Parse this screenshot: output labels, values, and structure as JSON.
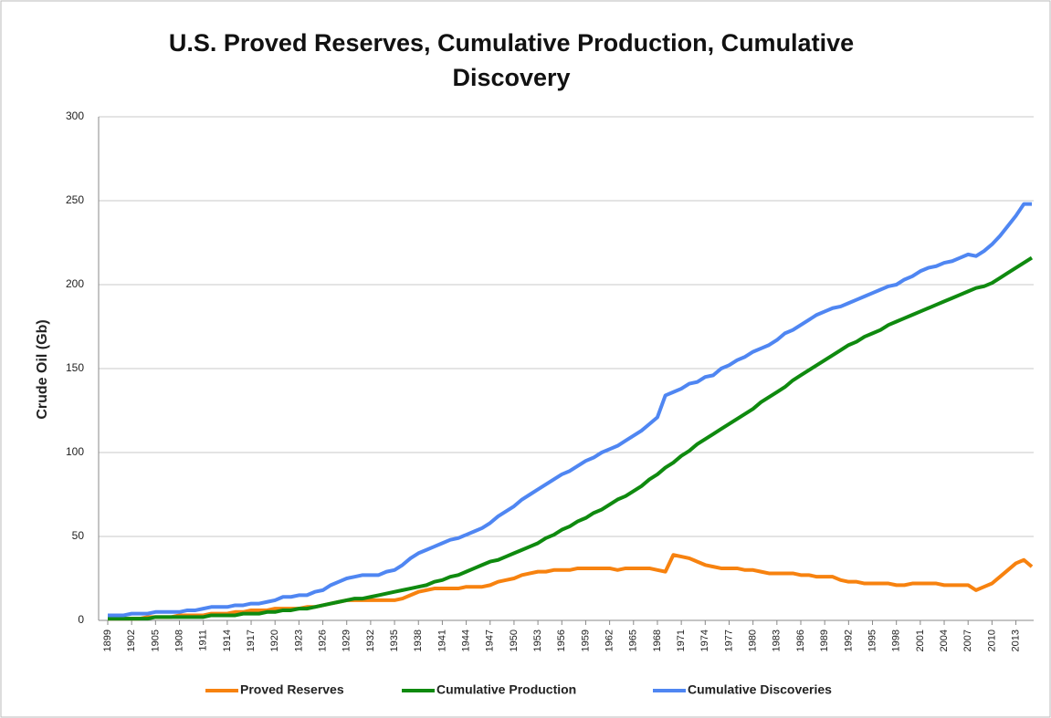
{
  "chart_data": {
    "type": "line",
    "title": "U.S. Proved Reserves, Cumulative Production, Cumulative Discovery",
    "y_label": "Crude Oil (Gb)",
    "categories": [
      "1899",
      null,
      null,
      "1902",
      null,
      null,
      "1905",
      null,
      null,
      "1908",
      null,
      null,
      "1911",
      null,
      null,
      "1914",
      null,
      null,
      "1917",
      null,
      null,
      "1920",
      null,
      null,
      "1923",
      null,
      null,
      "1926",
      null,
      null,
      "1929",
      null,
      null,
      "1932",
      null,
      null,
      "1935",
      null,
      null,
      "1938",
      null,
      null,
      "1941",
      null,
      null,
      "1944",
      null,
      null,
      "1947",
      null,
      null,
      "1950",
      null,
      null,
      "1953",
      null,
      null,
      "1956",
      null,
      null,
      "1959",
      null,
      null,
      "1962",
      null,
      null,
      "1965",
      null,
      null,
      "1968",
      null,
      null,
      "1971",
      null,
      null,
      "1974",
      null,
      null,
      "1977",
      null,
      null,
      "1980",
      null,
      null,
      "1983",
      null,
      null,
      "1986",
      null,
      null,
      "1989",
      null,
      null,
      "1992",
      null,
      null,
      "1995",
      null,
      null,
      "1998",
      null,
      null,
      "2001",
      null,
      null,
      "2004",
      null,
      null,
      "2007",
      null,
      null,
      "2010",
      null,
      null,
      "2013",
      null,
      null
    ],
    "series": [
      {
        "name": "Proved Reserves",
        "color": "#f7820f",
        "values": [
          1,
          1,
          1,
          1,
          1,
          2,
          2,
          2,
          2,
          3,
          3,
          3,
          3,
          4,
          4,
          4,
          5,
          5,
          6,
          6,
          6,
          7,
          7,
          7,
          7,
          8,
          8,
          9,
          10,
          11,
          12,
          12,
          12,
          12,
          12,
          12,
          12,
          13,
          15,
          17,
          18,
          19,
          19,
          19,
          19,
          20,
          20,
          20,
          21,
          23,
          24,
          25,
          27,
          28,
          29,
          29,
          30,
          30,
          30,
          31,
          31,
          31,
          31,
          31,
          30,
          31,
          31,
          31,
          31,
          30,
          29,
          39,
          38,
          37,
          35,
          33,
          32,
          31,
          31,
          31,
          30,
          30,
          29,
          28,
          28,
          28,
          28,
          27,
          27,
          26,
          26,
          26,
          24,
          23,
          23,
          22,
          22,
          22,
          22,
          21,
          21,
          22,
          22,
          22,
          22,
          21,
          21,
          21,
          21,
          18,
          20,
          22,
          26,
          30,
          34,
          36,
          32
        ]
      },
      {
        "name": "Cumulative Production",
        "color": "#0f8a0f",
        "values": [
          1,
          1,
          1,
          1,
          1,
          1,
          2,
          2,
          2,
          2,
          2,
          2,
          2,
          3,
          3,
          3,
          3,
          4,
          4,
          4,
          5,
          5,
          6,
          6,
          7,
          7,
          8,
          9,
          10,
          11,
          12,
          13,
          13,
          14,
          15,
          16,
          17,
          18,
          19,
          20,
          21,
          23,
          24,
          26,
          27,
          29,
          31,
          33,
          35,
          36,
          38,
          40,
          42,
          44,
          46,
          49,
          51,
          54,
          56,
          59,
          61,
          64,
          66,
          69,
          72,
          74,
          77,
          80,
          84,
          87,
          91,
          94,
          98,
          101,
          105,
          108,
          111,
          114,
          117,
          120,
          123,
          126,
          130,
          133,
          136,
          139,
          143,
          146,
          149,
          152,
          155,
          158,
          161,
          164,
          166,
          169,
          171,
          173,
          176,
          178,
          180,
          182,
          184,
          186,
          188,
          190,
          192,
          194,
          196,
          198,
          199,
          201,
          204,
          207,
          210,
          213,
          216
        ]
      },
      {
        "name": "Cumulative Discoveries",
        "color": "#4f86f2",
        "values": [
          3,
          3,
          3,
          4,
          4,
          4,
          5,
          5,
          5,
          5,
          6,
          6,
          7,
          8,
          8,
          8,
          9,
          9,
          10,
          10,
          11,
          12,
          14,
          14,
          15,
          15,
          17,
          18,
          21,
          23,
          25,
          26,
          27,
          27,
          27,
          29,
          30,
          33,
          37,
          40,
          42,
          44,
          46,
          48,
          49,
          51,
          53,
          55,
          58,
          62,
          65,
          68,
          72,
          75,
          78,
          81,
          84,
          87,
          89,
          92,
          95,
          97,
          100,
          102,
          104,
          107,
          110,
          113,
          117,
          121,
          134,
          136,
          138,
          141,
          142,
          145,
          146,
          150,
          152,
          155,
          157,
          160,
          162,
          164,
          167,
          171,
          173,
          176,
          179,
          182,
          184,
          186,
          187,
          189,
          191,
          193,
          195,
          197,
          199,
          200,
          203,
          205,
          208,
          210,
          211,
          213,
          214,
          216,
          218,
          217,
          220,
          224,
          229,
          235,
          241,
          248,
          248
        ]
      }
    ],
    "ylim": [
      0,
      300
    ],
    "yticks": [
      0,
      50,
      100,
      150,
      200,
      250,
      300
    ],
    "grid": true,
    "legend": "bottom"
  }
}
